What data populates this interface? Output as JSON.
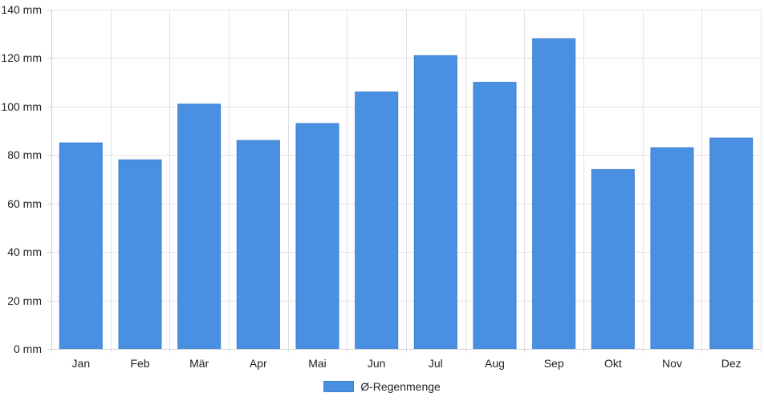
{
  "chart_data": {
    "type": "bar",
    "categories": [
      "Jan",
      "Feb",
      "Mär",
      "Apr",
      "Mai",
      "Jun",
      "Jul",
      "Aug",
      "Sep",
      "Okt",
      "Nov",
      "Dez"
    ],
    "series": [
      {
        "name": "Ø-Regenmenge",
        "values": [
          85,
          78,
          101,
          86,
          93,
          106,
          121,
          110,
          128,
          74,
          83,
          87
        ],
        "color": "#4a90e2"
      }
    ],
    "ylim": [
      0,
      140
    ],
    "yticks": [
      0,
      20,
      40,
      60,
      80,
      100,
      120,
      140
    ],
    "ytick_labels": [
      "0 mm",
      "20 mm",
      "40 mm",
      "60 mm",
      "80 mm",
      "100 mm",
      "120 mm",
      "140 mm"
    ],
    "grid": true,
    "legend_position": "bottom-center"
  }
}
